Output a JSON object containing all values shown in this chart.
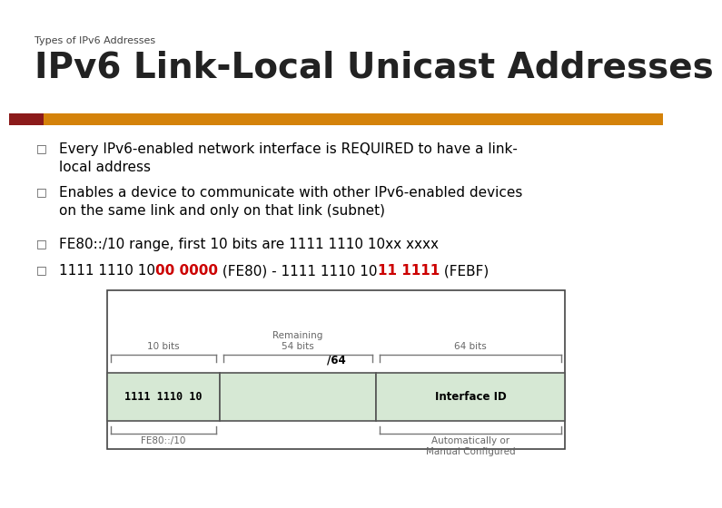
{
  "subtitle": "Types of IPv6 Addresses",
  "title": "IPv6 Link-Local Unicast Addresses",
  "bar_color_left": "#8B1A1A",
  "bar_color_right": "#D4820A",
  "bg_color": "#FFFFFF",
  "bullet_font_size": 11,
  "bullet_color": "#000000",
  "bullet_square": "□",
  "bullet_sq_color": "#555555",
  "diagram": {
    "cell_fill": "#D6E8D4",
    "label_10bits": "10 bits",
    "label_remaining": "Remaining\n54 bits",
    "label_64bits": "64 bits",
    "label_slash64": "/64",
    "label_left_cell": "1111 1110 10",
    "label_right_cell": "Interface ID",
    "label_fe80": "FE80::/10",
    "label_auto": "Automatically or\nManual Configured"
  },
  "bullet4_parts": [
    {
      "text": "1111 1110 10",
      "color": "#000000",
      "bold": false
    },
    {
      "text": "00 0000",
      "color": "#CC0000",
      "bold": true
    },
    {
      "text": " (FE80) - 1111 1110 10",
      "color": "#000000",
      "bold": false
    },
    {
      "text": "11 1111",
      "color": "#CC0000",
      "bold": true
    },
    {
      "text": " (FEBF)",
      "color": "#000000",
      "bold": false
    }
  ]
}
